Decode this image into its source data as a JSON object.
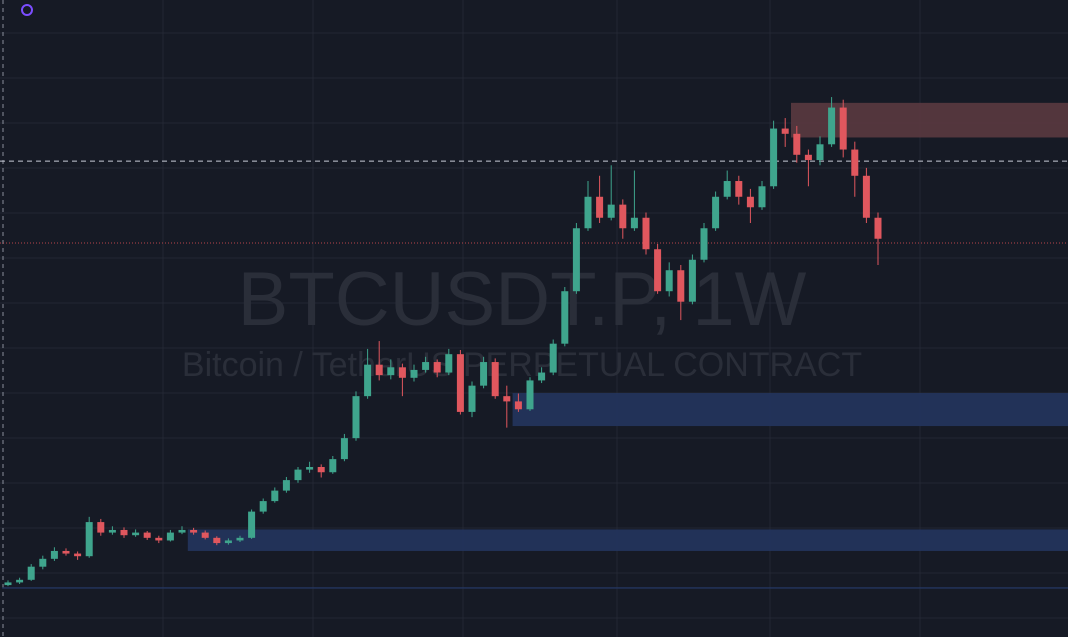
{
  "chart_data": {
    "type": "candlestick",
    "title": "BTCUSDT.P, 1W",
    "subtitle": "Bitcoin / TetherUS PERPETUAL CONTRACT",
    "ylim": [
      6100,
      127500
    ],
    "up_color": "#3fa58d",
    "down_color": "#e0575e",
    "open": [
      16000,
      16500,
      17000,
      19500,
      21000,
      22500,
      22000,
      21500,
      28000,
      26000,
      26500,
      25500,
      26000,
      25000,
      24500,
      26000,
      26500,
      26000,
      25000,
      24000,
      24500,
      25000,
      30000,
      32000,
      34000,
      36000,
      38000,
      38500,
      37500,
      40000,
      44000,
      52000,
      58000,
      56000,
      57500,
      55500,
      57000,
      58500,
      56500,
      60000,
      49000,
      54000,
      58500,
      52000,
      51000,
      49500,
      55000,
      56500,
      62000,
      72000,
      84000,
      90000,
      86000,
      88500,
      84000,
      86000,
      80000,
      72000,
      76000,
      70000,
      78000,
      84000,
      90000,
      93000,
      90000,
      88000,
      92000,
      103000,
      102000,
      98000,
      97000,
      100000,
      107000,
      99000,
      94000,
      86000
    ],
    "high": [
      16900,
      17400,
      20000,
      21600,
      23200,
      23000,
      22400,
      29000,
      28600,
      27200,
      27000,
      26600,
      26300,
      25400,
      26500,
      27200,
      26900,
      26400,
      25300,
      24900,
      25400,
      30400,
      32500,
      34600,
      36600,
      38500,
      39500,
      39000,
      40600,
      44800,
      52900,
      61000,
      62500,
      59000,
      58200,
      58000,
      59500,
      59000,
      61000,
      60800,
      54800,
      59500,
      59200,
      54000,
      52500,
      55600,
      57500,
      62800,
      72800,
      85000,
      93000,
      94000,
      96000,
      89500,
      95000,
      87000,
      81000,
      77500,
      77000,
      79000,
      85000,
      91000,
      95000,
      94000,
      91500,
      93000,
      104500,
      105000,
      103500,
      99000,
      101500,
      109000,
      108500,
      100500,
      95500,
      87000
    ],
    "low": [
      15800,
      16200,
      16800,
      19000,
      20600,
      21600,
      20800,
      21200,
      25400,
      25600,
      25000,
      25200,
      24600,
      24000,
      24300,
      25700,
      25600,
      24700,
      23600,
      23700,
      24200,
      24800,
      29600,
      31700,
      33600,
      35500,
      37400,
      36500,
      37200,
      39600,
      43500,
      51500,
      55000,
      55200,
      52000,
      54800,
      56500,
      55600,
      56000,
      48500,
      48000,
      53500,
      51500,
      46000,
      49000,
      49200,
      54500,
      56000,
      61500,
      71500,
      83500,
      85000,
      85500,
      82000,
      83500,
      79000,
      71500,
      71000,
      66500,
      69500,
      77500,
      83500,
      89500,
      88500,
      85000,
      87500,
      91500,
      99500,
      96500,
      92000,
      96000,
      99500,
      97500,
      90000,
      85000,
      77000
    ],
    "close": [
      16500,
      17000,
      19500,
      21000,
      22500,
      22000,
      21500,
      28000,
      26000,
      26500,
      25500,
      26000,
      25000,
      24500,
      26000,
      26500,
      26000,
      25000,
      24000,
      24500,
      25000,
      30000,
      32000,
      34000,
      36000,
      38000,
      38500,
      37500,
      40000,
      44000,
      52000,
      58000,
      56000,
      57500,
      55500,
      57000,
      58500,
      56500,
      60000,
      49000,
      54000,
      58500,
      52000,
      51000,
      49500,
      55000,
      56500,
      62000,
      72000,
      84000,
      90000,
      86000,
      88500,
      84000,
      86000,
      80000,
      72000,
      76000,
      70000,
      78000,
      84000,
      90000,
      93000,
      90000,
      88000,
      92000,
      103000,
      102000,
      98000,
      97000,
      100000,
      107000,
      99000,
      94000,
      86000,
      82000
    ],
    "zones": [
      {
        "low": 101300,
        "high": 107900,
        "start": 68,
        "color": "#5a3a40"
      },
      {
        "low": 46300,
        "high": 52600,
        "start": 44,
        "color": "#24355e"
      },
      {
        "low": 22500,
        "high": 26600,
        "start": 16,
        "color": "#24355e"
      },
      {
        "low": 15300,
        "high": 15600,
        "start": 0,
        "color": "#24355e"
      }
    ],
    "levels": [
      {
        "value": 96800,
        "color": "#c8ccd6",
        "style": "dashed"
      },
      {
        "value": 81200,
        "color": "#b8444a",
        "style": "dotted"
      }
    ]
  }
}
